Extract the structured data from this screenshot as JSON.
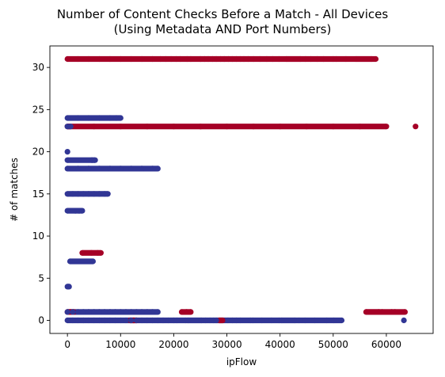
{
  "chart_data": {
    "type": "scatter",
    "title_line1": "Number of Content Checks Before a Match - All Devices",
    "title_line2": "(Using Metadata AND Port Numbers)",
    "xlabel": "ipFlow",
    "ylabel": "# of matches",
    "xlim": [
      -3300,
      68800
    ],
    "ylim": [
      -1.55,
      32.55
    ],
    "xticks": [
      0,
      10000,
      20000,
      30000,
      40000,
      50000,
      60000
    ],
    "yticks": [
      0,
      5,
      10,
      15,
      20,
      25,
      30
    ],
    "grid": false,
    "legend": "none",
    "colors": {
      "blue": "#313695",
      "red": "#a50026"
    },
    "series": [
      {
        "color": "red",
        "points": [
          [
            0,
            31
          ],
          [
            2000,
            31
          ],
          [
            4000,
            31
          ],
          [
            6000,
            31
          ],
          [
            8000,
            31
          ],
          [
            10000,
            31
          ],
          [
            12000,
            31
          ],
          [
            14000,
            31
          ],
          [
            16000,
            31
          ],
          [
            17500,
            31
          ],
          [
            18500,
            31
          ],
          [
            19500,
            31
          ],
          [
            20500,
            31
          ],
          [
            21200,
            31
          ],
          [
            22500,
            31
          ],
          [
            23200,
            31
          ],
          [
            25000,
            31
          ],
          [
            25800,
            31
          ],
          [
            26500,
            31
          ],
          [
            27300,
            31
          ],
          [
            28000,
            31
          ],
          [
            28800,
            31
          ],
          [
            29500,
            31
          ],
          [
            30300,
            31
          ],
          [
            31000,
            31
          ],
          [
            31800,
            31
          ],
          [
            32500,
            31
          ],
          [
            33200,
            31
          ],
          [
            34000,
            31
          ],
          [
            35000,
            31
          ],
          [
            36200,
            31
          ],
          [
            37500,
            31
          ],
          [
            38600,
            31
          ],
          [
            39800,
            31
          ],
          [
            41200,
            31
          ],
          [
            43800,
            31
          ],
          [
            44800,
            31
          ],
          [
            45800,
            31
          ],
          [
            47000,
            31
          ],
          [
            48200,
            31
          ],
          [
            50000,
            31
          ],
          [
            50600,
            31
          ],
          [
            52400,
            31
          ],
          [
            54300,
            31
          ],
          [
            57200,
            31
          ],
          [
            58000,
            31
          ],
          [
            0,
            23
          ],
          [
            5000,
            23
          ],
          [
            10000,
            23
          ],
          [
            15000,
            23
          ],
          [
            20000,
            23
          ],
          [
            25000,
            23
          ],
          [
            30000,
            23
          ],
          [
            35000,
            23
          ],
          [
            40000,
            23
          ],
          [
            45000,
            23
          ],
          [
            50000,
            23
          ],
          [
            55000,
            23
          ],
          [
            60000,
            23
          ],
          [
            65500,
            23
          ],
          [
            2800,
            8
          ],
          [
            4500,
            8
          ],
          [
            5700,
            8
          ],
          [
            6300,
            8
          ],
          [
            0,
            1
          ],
          [
            600,
            1
          ],
          [
            1200,
            1
          ],
          [
            21500,
            1
          ],
          [
            22400,
            1
          ],
          [
            23200,
            1
          ],
          [
            56200,
            1
          ],
          [
            58600,
            1
          ],
          [
            59200,
            1
          ],
          [
            61000,
            1
          ],
          [
            61600,
            1
          ],
          [
            63500,
            1
          ],
          [
            11800,
            0
          ],
          [
            12400,
            0
          ],
          [
            13000,
            0
          ],
          [
            28600,
            0
          ],
          [
            29200,
            0
          ]
        ]
      },
      {
        "color": "blue",
        "points": [
          [
            0,
            24
          ],
          [
            2000,
            24
          ],
          [
            4000,
            24
          ],
          [
            6000,
            24
          ],
          [
            8000,
            24
          ],
          [
            9200,
            24
          ],
          [
            10000,
            24
          ],
          [
            0,
            23
          ],
          [
            600,
            23
          ],
          [
            0,
            20
          ],
          [
            0,
            19
          ],
          [
            4600,
            19
          ],
          [
            5200,
            19
          ],
          [
            0,
            18
          ],
          [
            2000,
            18
          ],
          [
            4000,
            18
          ],
          [
            6000,
            18
          ],
          [
            8000,
            18
          ],
          [
            10000,
            18
          ],
          [
            12000,
            18
          ],
          [
            14000,
            18
          ],
          [
            16000,
            18
          ],
          [
            17000,
            18
          ],
          [
            0,
            15
          ],
          [
            1000,
            15
          ],
          [
            2000,
            15
          ],
          [
            3000,
            15
          ],
          [
            4000,
            15
          ],
          [
            5000,
            15
          ],
          [
            6000,
            15
          ],
          [
            7000,
            15
          ],
          [
            7600,
            15
          ],
          [
            0,
            13
          ],
          [
            1500,
            13
          ],
          [
            2200,
            13
          ],
          [
            2800,
            13
          ],
          [
            500,
            7
          ],
          [
            4800,
            7
          ],
          [
            0,
            4
          ],
          [
            300,
            4
          ],
          [
            0,
            1
          ],
          [
            1000,
            1
          ],
          [
            2000,
            1
          ],
          [
            3000,
            1
          ],
          [
            4000,
            1
          ],
          [
            5000,
            1
          ],
          [
            6000,
            1
          ],
          [
            7000,
            1
          ],
          [
            8000,
            1
          ],
          [
            9000,
            1
          ],
          [
            10000,
            1
          ],
          [
            11000,
            1
          ],
          [
            12000,
            1
          ],
          [
            13000,
            1
          ],
          [
            14000,
            1
          ],
          [
            15000,
            1
          ],
          [
            16000,
            1
          ],
          [
            17000,
            1
          ],
          [
            0,
            0
          ],
          [
            1000,
            0
          ],
          [
            2000,
            0
          ],
          [
            3000,
            0
          ],
          [
            4000,
            0
          ],
          [
            5000,
            0
          ],
          [
            6000,
            0
          ],
          [
            7000,
            0
          ],
          [
            8000,
            0
          ],
          [
            9000,
            0
          ],
          [
            10000,
            0
          ],
          [
            11000,
            0
          ],
          [
            12000,
            0
          ],
          [
            13000,
            0
          ],
          [
            14000,
            0
          ],
          [
            15000,
            0
          ],
          [
            16000,
            0
          ],
          [
            17000,
            0
          ],
          [
            18000,
            0
          ],
          [
            19000,
            0
          ],
          [
            20000,
            0
          ],
          [
            20600,
            0
          ],
          [
            22200,
            0
          ],
          [
            22700,
            0
          ],
          [
            25200,
            0
          ],
          [
            26000,
            0
          ],
          [
            26800,
            0
          ],
          [
            27500,
            0
          ],
          [
            28000,
            0
          ],
          [
            30200,
            0
          ],
          [
            31000,
            0
          ],
          [
            31800,
            0
          ],
          [
            32500,
            0
          ],
          [
            34400,
            0
          ],
          [
            34900,
            0
          ],
          [
            36600,
            0
          ],
          [
            38400,
            0
          ],
          [
            39800,
            0
          ],
          [
            40300,
            0
          ],
          [
            42800,
            0
          ],
          [
            43600,
            0
          ],
          [
            44700,
            0
          ],
          [
            46500,
            0
          ],
          [
            48800,
            0
          ],
          [
            50100,
            0
          ],
          [
            51600,
            0
          ],
          [
            63300,
            0
          ]
        ]
      }
    ]
  }
}
